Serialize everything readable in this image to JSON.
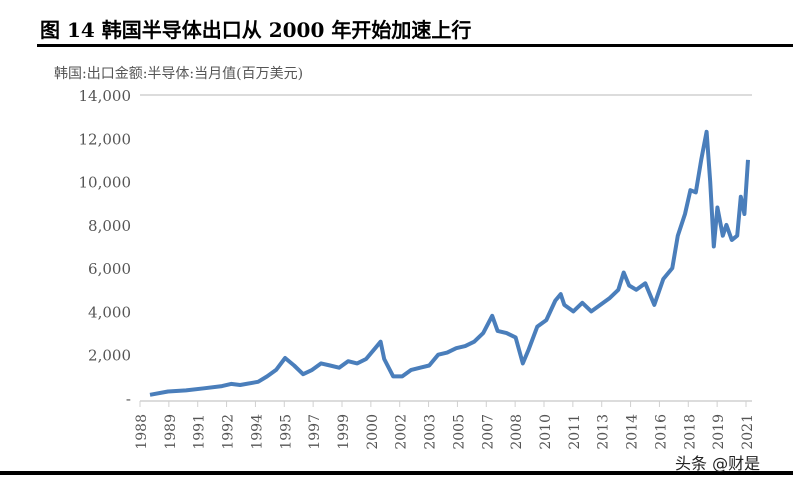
{
  "title": "图 14 韩国半导体出口从 2000 年开始加速上行",
  "watermark": "头条 @财是",
  "chart_data": {
    "type": "line",
    "title": "",
    "ylabel": "韩国:出口金额:半导体:当月值(百万美元)",
    "ylim": [
      0,
      14000
    ],
    "yticks": [
      "-",
      "2,000",
      "4,000",
      "6,000",
      "8,000",
      "10,000",
      "12,000",
      "14,000"
    ],
    "xlim": [
      1988,
      2021.2
    ],
    "xticks": [
      "1988",
      "1989",
      "1991",
      "1992",
      "1994",
      "1995",
      "1997",
      "1999",
      "2000",
      "2002",
      "2003",
      "2005",
      "2007",
      "2008",
      "2010",
      "2011",
      "2013",
      "2014",
      "2016",
      "2018",
      "2019",
      "2021"
    ],
    "grid": false,
    "color": "#4a7ebb",
    "series": [
      {
        "x": [
          1988,
          1989,
          1990,
          1991,
          1992,
          1992.5,
          1993,
          1994,
          1994.5,
          1995,
          1995.5,
          1996,
          1996.5,
          1997,
          1997.5,
          1998,
          1998.5,
          1999,
          1999.5,
          2000,
          2000.5,
          2000.8,
          2001,
          2001.5,
          2002,
          2002.5,
          2003,
          2003.5,
          2004,
          2004.5,
          2005,
          2005.5,
          2006,
          2006.5,
          2007,
          2007.3,
          2007.8,
          2008.3,
          2008.7,
          2009,
          2009.5,
          2010,
          2010.5,
          2010.8,
          2011,
          2011.5,
          2012,
          2012.5,
          2013,
          2013.5,
          2014,
          2014.3,
          2014.6,
          2015,
          2015.5,
          2016,
          2016.5,
          2017,
          2017.3,
          2017.7,
          2018,
          2018.3,
          2018.6,
          2018.9,
          2019.1,
          2019.3,
          2019.5,
          2019.8,
          2020,
          2020.3,
          2020.6,
          2020.8,
          2021,
          2021.2
        ],
        "y": [
          150,
          300,
          350,
          450,
          550,
          650,
          600,
          750,
          1000,
          1300,
          1850,
          1500,
          1100,
          1300,
          1600,
          1500,
          1400,
          1700,
          1600,
          1800,
          2300,
          2600,
          1800,
          1000,
          1000,
          1300,
          1400,
          1500,
          2000,
          2100,
          2300,
          2400,
          2600,
          3000,
          3800,
          3100,
          3000,
          2800,
          1600,
          2200,
          3300,
          3600,
          4500,
          4800,
          4300,
          4000,
          4400,
          4000,
          4300,
          4600,
          5000,
          5800,
          5200,
          5000,
          5300,
          4300,
          5500,
          6000,
          7500,
          8500,
          9600,
          9500,
          11000,
          12300,
          10000,
          7000,
          8800,
          7500,
          8000,
          7300,
          7500,
          9300,
          8500,
          11000
        ]
      }
    ]
  }
}
